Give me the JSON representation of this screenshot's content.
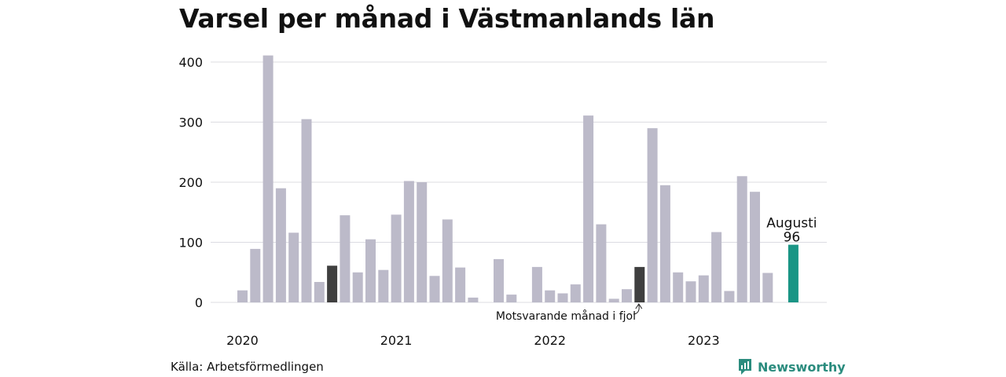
{
  "title": "Varsel per månad i Västmanlands län",
  "source": "Källa: Arbetsförmedlingen",
  "brand": {
    "name": "Newsworthy",
    "icon": "newsworthy-logo-icon",
    "color": "#2b8c7e"
  },
  "chart_data": {
    "type": "bar",
    "title": "Varsel per månad i Västmanlands län",
    "xlabel": "",
    "ylabel": "",
    "ylim": [
      0,
      430
    ],
    "yticks": [
      0,
      100,
      200,
      300,
      400
    ],
    "grid": true,
    "year_labels": [
      "2020",
      "2021",
      "2022",
      "2023"
    ],
    "series": [
      {
        "values": [
          20,
          89,
          411,
          190,
          116,
          305,
          34,
          61,
          145,
          50,
          105,
          54,
          146,
          202,
          200,
          44,
          138,
          58,
          8,
          0,
          72,
          13,
          0,
          59,
          20,
          15,
          30,
          311,
          130,
          6,
          22,
          59,
          290,
          195,
          50,
          35,
          45,
          117,
          19,
          210,
          184,
          49,
          0,
          96
        ]
      }
    ],
    "colors": {
      "default": "#bcbac9",
      "previous_year": "#3f3f3f",
      "current": "#1a9585"
    },
    "previous_year_index": 31,
    "highlight_prev_index": 7,
    "current_index": 43,
    "annotations": {
      "current_month": "Augusti",
      "current_value": "96",
      "previous_year_note": "Motsvarande månad i fjol"
    }
  }
}
